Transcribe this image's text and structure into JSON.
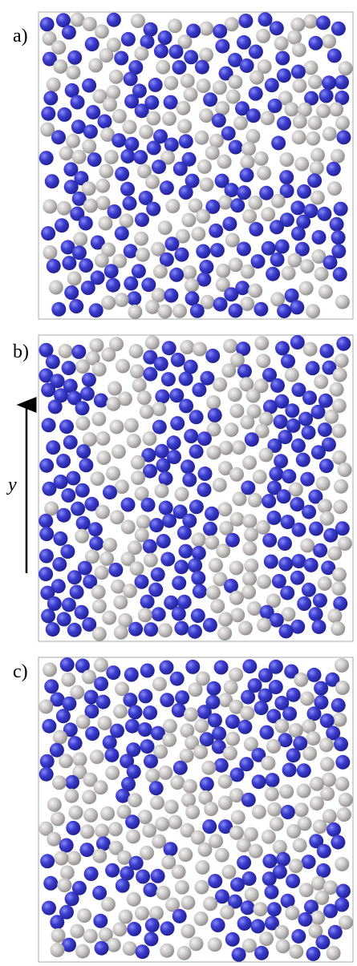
{
  "panels": [
    {
      "label": "a)"
    },
    {
      "label": "b)"
    },
    {
      "label": "c)"
    }
  ],
  "axis_label": "y"
}
